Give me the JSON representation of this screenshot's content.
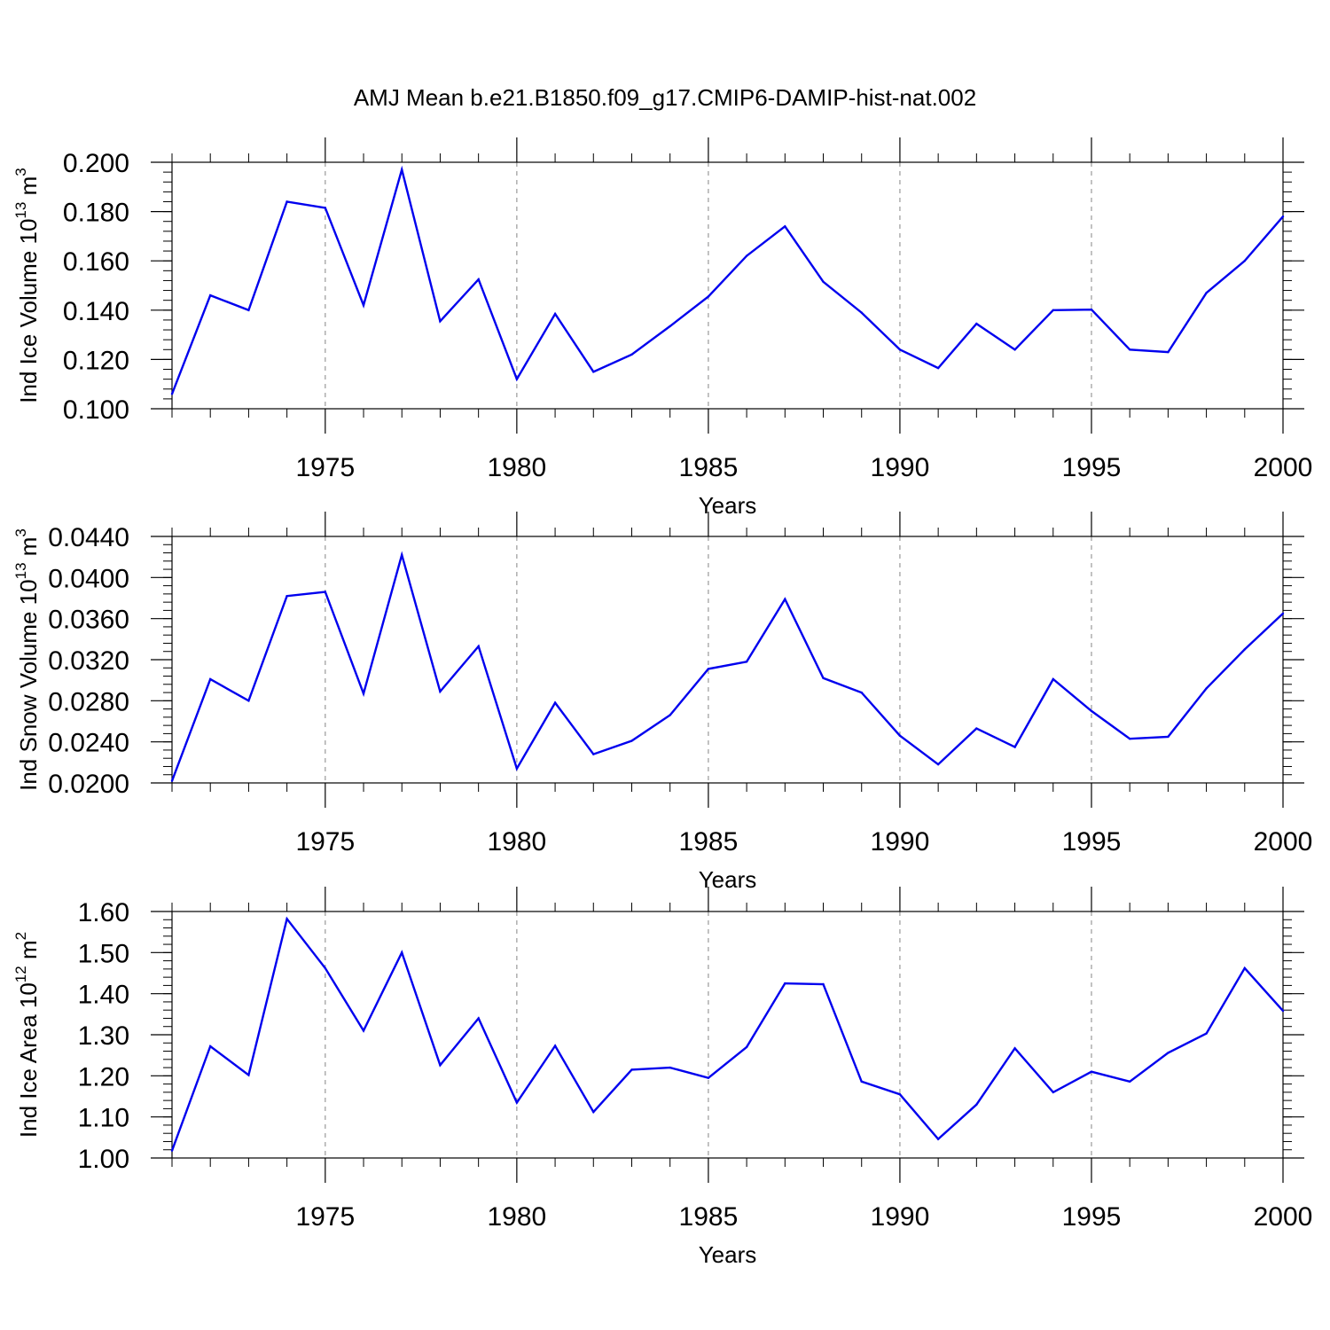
{
  "figure": {
    "title": "AMJ Mean b.e21.B1850.f09_g17.CMIP6-DAMIP-hist-nat.002"
  },
  "colors": {
    "line": "#0000ee",
    "axis": "#000000",
    "grid": "#999999"
  },
  "chart_data": [
    {
      "type": "line",
      "name": "ice-volume",
      "xlabel": "Years",
      "ylabel": {
        "main": "Ind Ice Volume 10",
        "exp": "13",
        "unit": " m",
        "unit_exp": "3"
      },
      "xlim": [
        1971,
        2000
      ],
      "ylim": [
        0.1,
        0.2
      ],
      "xticks": [
        1975,
        1980,
        1985,
        1990,
        1995,
        2000
      ],
      "yticks": [
        "0.100",
        "0.120",
        "0.140",
        "0.160",
        "0.180",
        "0.200"
      ],
      "y_minor_step": 0.004,
      "grid_x": [
        1975,
        1980,
        1985,
        1990,
        1995
      ],
      "x": [
        1971,
        1972,
        1973,
        1974,
        1975,
        1976,
        1977,
        1978,
        1979,
        1980,
        1981,
        1982,
        1983,
        1984,
        1985,
        1986,
        1987,
        1988,
        1989,
        1990,
        1991,
        1992,
        1993,
        1994,
        1995,
        1996,
        1997,
        1998,
        1999,
        2000
      ],
      "values": [
        0.106,
        0.146,
        0.14,
        0.184,
        0.1815,
        0.142,
        0.197,
        0.1355,
        0.1525,
        0.112,
        0.1385,
        0.115,
        0.122,
        0.1335,
        0.1455,
        0.162,
        0.174,
        0.1515,
        0.139,
        0.124,
        0.1165,
        0.1345,
        0.124,
        0.14,
        0.1402,
        0.124,
        0.123,
        0.147,
        0.16,
        0.178
      ]
    },
    {
      "type": "line",
      "name": "snow-volume",
      "xlabel": "Years",
      "ylabel": {
        "main": "Ind Snow Volume 10",
        "exp": "13",
        "unit": " m",
        "unit_exp": "3"
      },
      "xlim": [
        1971,
        2000
      ],
      "ylim": [
        0.02,
        0.044
      ],
      "xticks": [
        1975,
        1980,
        1985,
        1990,
        1995,
        2000
      ],
      "yticks": [
        "0.0200",
        "0.0240",
        "0.0280",
        "0.0320",
        "0.0360",
        "0.0400",
        "0.0440"
      ],
      "y_minor_step": 0.0008,
      "grid_x": [
        1975,
        1980,
        1985,
        1990,
        1995
      ],
      "x": [
        1971,
        1972,
        1973,
        1974,
        1975,
        1976,
        1977,
        1978,
        1979,
        1980,
        1981,
        1982,
        1983,
        1984,
        1985,
        1986,
        1987,
        1988,
        1989,
        1990,
        1991,
        1992,
        1993,
        1994,
        1995,
        1996,
        1997,
        1998,
        1999,
        2000
      ],
      "values": [
        0.0202,
        0.0301,
        0.028,
        0.0382,
        0.0386,
        0.0287,
        0.0422,
        0.0289,
        0.0333,
        0.0214,
        0.0278,
        0.0228,
        0.0241,
        0.0266,
        0.0311,
        0.0318,
        0.0379,
        0.0302,
        0.0288,
        0.0246,
        0.0218,
        0.0253,
        0.0235,
        0.0301,
        0.027,
        0.0243,
        0.0245,
        0.0292,
        0.033,
        0.0365
      ]
    },
    {
      "type": "line",
      "name": "ice-area",
      "xlabel": "Years",
      "ylabel": {
        "main": "Ind Ice Area 10",
        "exp": "12",
        "unit": " m",
        "unit_exp": "2"
      },
      "xlim": [
        1971,
        2000
      ],
      "ylim": [
        1.0,
        1.6
      ],
      "xticks": [
        1975,
        1980,
        1985,
        1990,
        1995,
        2000
      ],
      "yticks": [
        "1.00",
        "1.10",
        "1.20",
        "1.30",
        "1.40",
        "1.50",
        "1.60"
      ],
      "y_minor_step": 0.02,
      "grid_x": [
        1975,
        1980,
        1985,
        1990,
        1995
      ],
      "x": [
        1971,
        1972,
        1973,
        1974,
        1975,
        1976,
        1977,
        1978,
        1979,
        1980,
        1981,
        1982,
        1983,
        1984,
        1985,
        1986,
        1987,
        1988,
        1989,
        1990,
        1991,
        1992,
        1993,
        1994,
        1995,
        1996,
        1997,
        1998,
        1999,
        2000
      ],
      "values": [
        1.018,
        1.272,
        1.202,
        1.582,
        1.462,
        1.31,
        1.5,
        1.226,
        1.34,
        1.135,
        1.273,
        1.112,
        1.215,
        1.22,
        1.195,
        1.27,
        1.425,
        1.423,
        1.186,
        1.155,
        1.046,
        1.13,
        1.267,
        1.16,
        1.21,
        1.186,
        1.256,
        1.303,
        1.462,
        1.358
      ]
    }
  ]
}
